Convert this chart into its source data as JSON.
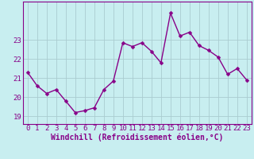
{
  "x": [
    0,
    1,
    2,
    3,
    4,
    5,
    6,
    7,
    8,
    9,
    10,
    11,
    12,
    13,
    14,
    15,
    16,
    17,
    18,
    19,
    20,
    21,
    22,
    23
  ],
  "y": [
    21.3,
    20.6,
    20.2,
    20.4,
    19.8,
    19.2,
    19.3,
    19.45,
    20.4,
    20.85,
    22.85,
    22.65,
    22.85,
    22.4,
    21.8,
    24.4,
    23.2,
    23.4,
    22.7,
    22.45,
    22.1,
    21.2,
    21.5,
    20.9
  ],
  "line_color": "#880088",
  "marker_color": "#880088",
  "bg_color": "#c8eef0",
  "grid_color": "#aaccd0",
  "xlabel": "Windchill (Refroidissement éolien,°C)",
  "ylim_min": 18.6,
  "ylim_max": 25.0,
  "yticks": [
    19,
    20,
    21,
    22,
    23
  ],
  "xticks": [
    0,
    1,
    2,
    3,
    4,
    5,
    6,
    7,
    8,
    9,
    10,
    11,
    12,
    13,
    14,
    15,
    16,
    17,
    18,
    19,
    20,
    21,
    22,
    23
  ],
  "xlabel_fontsize": 7.0,
  "tick_fontsize": 6.5,
  "marker_size": 2.5,
  "line_width": 1.0
}
